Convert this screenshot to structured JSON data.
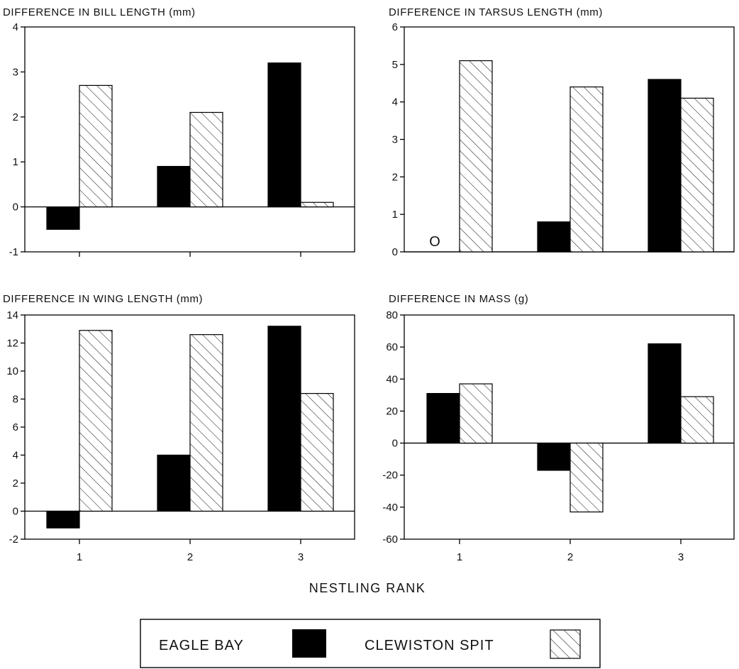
{
  "chart_data": [
    {
      "type": "bar",
      "title": "DIFFERENCE IN BILL LENGTH (mm)",
      "categories": [
        "1",
        "2",
        "3"
      ],
      "series": [
        {
          "name": "EAGLE BAY",
          "values": [
            -0.5,
            0.9,
            3.2
          ]
        },
        {
          "name": "CLEWISTON SPIT",
          "values": [
            2.7,
            2.1,
            0.1
          ]
        }
      ],
      "ylim": [
        -1,
        4
      ],
      "yticks": [
        "-1",
        "0",
        "1",
        "2",
        "3",
        "4"
      ],
      "grid": false
    },
    {
      "type": "bar",
      "title": "DIFFERENCE IN TARSUS LENGTH (mm)",
      "categories": [
        "1",
        "2",
        "3"
      ],
      "series": [
        {
          "name": "EAGLE BAY",
          "values": [
            0,
            0.8,
            4.6
          ]
        },
        {
          "name": "CLEWISTON SPIT",
          "values": [
            5.1,
            4.4,
            4.1
          ]
        }
      ],
      "annotations": [
        {
          "text": "O",
          "category": "1",
          "series": "EAGLE BAY"
        }
      ],
      "ylim": [
        0,
        6
      ],
      "yticks": [
        "0",
        "1",
        "2",
        "3",
        "4",
        "5",
        "6"
      ],
      "grid": false
    },
    {
      "type": "bar",
      "title": "DIFFERENCE IN WING LENGTH (mm)",
      "categories": [
        "1",
        "2",
        "3"
      ],
      "series": [
        {
          "name": "EAGLE BAY",
          "values": [
            -1.2,
            4.0,
            13.2
          ]
        },
        {
          "name": "CLEWISTON SPIT",
          "values": [
            12.9,
            12.6,
            8.4
          ]
        }
      ],
      "ylim": [
        -2,
        14
      ],
      "yticks": [
        "-2",
        "0",
        "2",
        "4",
        "6",
        "8",
        "10",
        "12",
        "14"
      ],
      "grid": false
    },
    {
      "type": "bar",
      "title": "DIFFERENCE IN MASS (g)",
      "categories": [
        "1",
        "2",
        "3"
      ],
      "series": [
        {
          "name": "EAGLE BAY",
          "values": [
            31,
            -17,
            62
          ]
        },
        {
          "name": "CLEWISTON SPIT",
          "values": [
            37,
            -43,
            29
          ]
        }
      ],
      "ylim": [
        -60,
        80
      ],
      "yticks": [
        "-60",
        "-40",
        "-20",
        "0",
        "20",
        "40",
        "60",
        "80"
      ],
      "grid": false
    }
  ],
  "xlabel": "NESTLING RANK",
  "legend": {
    "placement": "bottom-center",
    "items": [
      {
        "label": "EAGLE BAY",
        "style": "solid",
        "color": "#000000"
      },
      {
        "label": "CLEWISTON SPIT",
        "style": "hatched",
        "color": "#ffffff"
      }
    ]
  }
}
